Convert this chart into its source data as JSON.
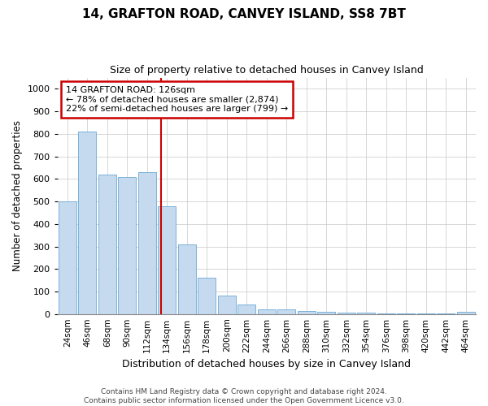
{
  "title": "14, GRAFTON ROAD, CANVEY ISLAND, SS8 7BT",
  "subtitle": "Size of property relative to detached houses in Canvey Island",
  "xlabel": "Distribution of detached houses by size in Canvey Island",
  "ylabel": "Number of detached properties",
  "categories": [
    "24sqm",
    "46sqm",
    "68sqm",
    "90sqm",
    "112sqm",
    "134sqm",
    "156sqm",
    "178sqm",
    "200sqm",
    "222sqm",
    "244sqm",
    "266sqm",
    "288sqm",
    "310sqm",
    "332sqm",
    "354sqm",
    "376sqm",
    "398sqm",
    "420sqm",
    "442sqm",
    "464sqm"
  ],
  "values": [
    500,
    810,
    620,
    610,
    630,
    480,
    310,
    160,
    80,
    42,
    22,
    20,
    15,
    10,
    7,
    5,
    3,
    2,
    1,
    1,
    10
  ],
  "bar_color": "#c5d9ef",
  "bar_edge_color": "#6aaad4",
  "background_color": "#ffffff",
  "grid_color": "#c8c8c8",
  "vline_color": "#cc0000",
  "annotation_text": "14 GRAFTON ROAD: 126sqm\n← 78% of detached houses are smaller (2,874)\n22% of semi-detached houses are larger (799) →",
  "annotation_box_color": "#cc0000",
  "footer_line1": "Contains HM Land Registry data © Crown copyright and database right 2024.",
  "footer_line2": "Contains public sector information licensed under the Open Government Licence v3.0.",
  "ylim": [
    0,
    1050
  ],
  "yticks": [
    0,
    100,
    200,
    300,
    400,
    500,
    600,
    700,
    800,
    900,
    1000
  ]
}
